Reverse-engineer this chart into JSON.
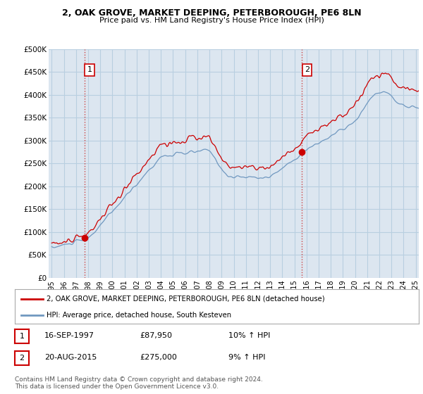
{
  "title": "2, OAK GROVE, MARKET DEEPING, PETERBOROUGH, PE6 8LN",
  "subtitle": "Price paid vs. HM Land Registry's House Price Index (HPI)",
  "bg_color": "#ffffff",
  "plot_bg_color": "#dce6f0",
  "grid_color": "#b8cfe0",
  "ylim": [
    0,
    500000
  ],
  "yticks": [
    0,
    50000,
    100000,
    150000,
    200000,
    250000,
    300000,
    350000,
    400000,
    450000,
    500000
  ],
  "ytick_labels": [
    "£0",
    "£50K",
    "£100K",
    "£150K",
    "£200K",
    "£250K",
    "£300K",
    "£350K",
    "£400K",
    "£450K",
    "£500K"
  ],
  "xlim_start": 1994.75,
  "xlim_end": 2025.25,
  "sale1_year": 1997.71,
  "sale1_price": 87950,
  "sale1_label": "1",
  "sale2_year": 2015.63,
  "sale2_price": 275000,
  "sale2_label": "2",
  "legend_line1": "2, OAK GROVE, MARKET DEEPING, PETERBOROUGH, PE6 8LN (detached house)",
  "legend_line2": "HPI: Average price, detached house, South Kesteven",
  "table_row1_label": "1",
  "table_row1_date": "16-SEP-1997",
  "table_row1_price": "£87,950",
  "table_row1_hpi": "10% ↑ HPI",
  "table_row2_label": "2",
  "table_row2_date": "20-AUG-2015",
  "table_row2_price": "£275,000",
  "table_row2_hpi": "9% ↑ HPI",
  "footer": "Contains HM Land Registry data © Crown copyright and database right 2024.\nThis data is licensed under the Open Government Licence v3.0.",
  "line_color_property": "#cc0000",
  "line_color_hpi": "#7098c0",
  "dashed_line_color": "#cc4444",
  "marker_color": "#cc0000",
  "box_edge_color": "#cc0000"
}
